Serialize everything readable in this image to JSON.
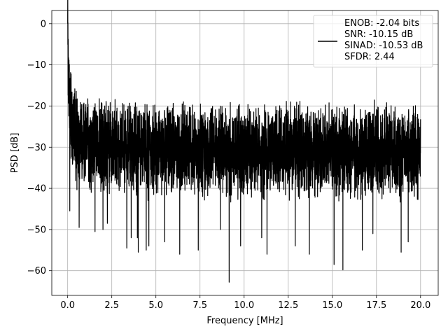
{
  "chart_data": {
    "type": "line",
    "xlabel": "Frequency [MHz]",
    "ylabel": "PSD [dB]",
    "xlim": [
      -0.9,
      21.0
    ],
    "ylim": [
      -66.0,
      3.2
    ],
    "x_ticks": [
      0.0,
      2.5,
      5.0,
      7.5,
      10.0,
      12.5,
      15.0,
      17.5,
      20.0
    ],
    "x_tick_labels": [
      "0.0",
      "2.5",
      "5.0",
      "7.5",
      "10.0",
      "12.5",
      "15.0",
      "17.5",
      "20.0"
    ],
    "y_ticks": [
      0,
      -10,
      -20,
      -30,
      -40,
      -50,
      -60
    ],
    "y_tick_labels": [
      "0",
      "−10",
      "−20",
      "−30",
      "−40",
      "−50",
      "−60"
    ],
    "grid": true,
    "legend_position": "top-right",
    "legend": [
      "ENOB: -2.04 bits",
      "SNR: -10.15 dB",
      "SINAD: -10.53 dB",
      "SFDR: 2.44"
    ],
    "series": [
      {
        "color": "#000000",
        "x_range": [
          0.0,
          20.0
        ],
        "sampled_points": [
          [
            0.0,
            0.0
          ],
          [
            0.02,
            -8.0
          ],
          [
            0.05,
            -14.0
          ],
          [
            0.1,
            -19.0
          ],
          [
            0.2,
            -22.0
          ],
          [
            0.5,
            -24.0
          ],
          [
            1.0,
            -26.0
          ],
          [
            2.0,
            -28.0
          ],
          [
            5.0,
            -29.0
          ],
          [
            10.0,
            -30.0
          ],
          [
            15.0,
            -30.0
          ],
          [
            20.0,
            -30.0
          ]
        ],
        "noise_floor_mean": -30.5,
        "noise_upper_envelope": -18.0,
        "notable_dips": [
          [
            0.12,
            -45.5
          ],
          [
            0.65,
            -49.5
          ],
          [
            1.55,
            -50.5
          ],
          [
            2.0,
            -50.0
          ],
          [
            2.25,
            -48.5
          ],
          [
            3.35,
            -54.5
          ],
          [
            3.6,
            -52.0
          ],
          [
            3.95,
            -52.0
          ],
          [
            4.0,
            -55.5
          ],
          [
            4.45,
            -55.0
          ],
          [
            4.6,
            -54.0
          ],
          [
            5.5,
            -53.0
          ],
          [
            6.35,
            -56.0
          ],
          [
            7.4,
            -55.0
          ],
          [
            8.65,
            -50.0
          ],
          [
            9.15,
            -62.8
          ],
          [
            9.8,
            -54.0
          ],
          [
            11.0,
            -52.0
          ],
          [
            11.3,
            -56.0
          ],
          [
            12.9,
            -54.0
          ],
          [
            13.7,
            -56.0
          ],
          [
            15.1,
            -58.5
          ],
          [
            15.6,
            -59.8
          ],
          [
            16.7,
            -55.0
          ],
          [
            17.3,
            -51.0
          ],
          [
            18.9,
            -55.5
          ],
          [
            19.3,
            -53.0
          ]
        ]
      }
    ]
  }
}
